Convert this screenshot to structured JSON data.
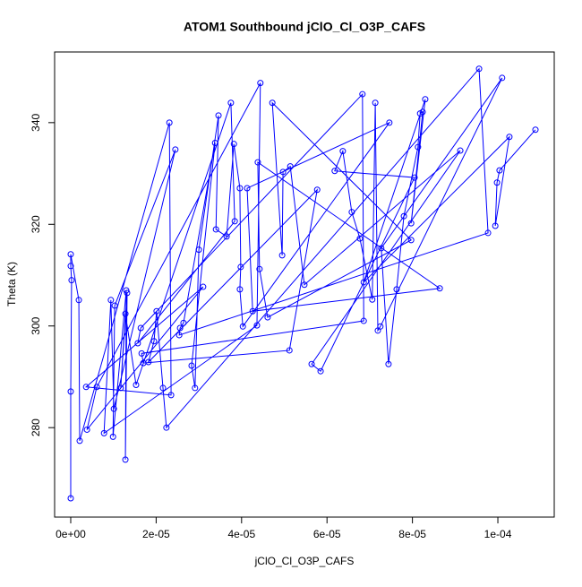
{
  "chart_data": {
    "type": "line",
    "title": "ATOM1 Southbound jClO_Cl_O3P_CAFS",
    "x_label": "jClO_Cl_O3P_CAFS",
    "y_label": "Theta (K)",
    "xlim": [
      -3.77e-06,
      0.0001132
    ],
    "ylim": [
      262.4,
      353.9
    ],
    "xticks": [
      {
        "value": 0,
        "label": "0e+00"
      },
      {
        "value": 2e-05,
        "label": "2e-05"
      },
      {
        "value": 4e-05,
        "label": "4e-05"
      },
      {
        "value": 6e-05,
        "label": "6e-05"
      },
      {
        "value": 8e-05,
        "label": "8e-05"
      },
      {
        "value": 0.0001,
        "label": "1e-04"
      }
    ],
    "yticks": [
      280,
      300,
      320,
      340
    ],
    "grid": false,
    "markers": true,
    "series": [
      {
        "color": "#0000ff",
        "x": [
          0.0,
          0.0,
          2e-07,
          0.0,
          0.0,
          1.9e-06,
          2.1e-06,
          2.31e-05,
          2.35e-05,
          3.6e-06,
          3.1e-05,
          3.8e-06,
          6.1e-06,
          4.44e-05,
          4.36e-05,
          7.8e-06,
          9.4e-06,
          1.01e-05,
          2.45e-05,
          1.03e-05,
          9.9e-06,
          1.3e-05,
          1.28e-05,
          1.32e-05,
          1.17e-05,
          1.28e-05,
          1.53e-05,
          3.75e-05,
          3.84e-05,
          1.57e-05,
          1.64e-05,
          6.83e-05,
          6.86e-05,
          1.66e-05,
          1.7e-05,
          5.12e-05,
          5.77e-05,
          1.82e-05,
          1.95e-05,
          2.01e-05,
          2.16e-05,
          2.24e-05,
          9.56e-05,
          9.77e-05,
          2.54e-05,
          2.56e-05,
          2.64e-05,
          3.38e-05,
          2.83e-05,
          2.91e-05,
          3e-05,
          3.46e-05,
          3.4e-05,
          3.65e-05,
          3.82e-05,
          3.96e-05,
          3.98e-05,
          3.96e-05,
          4.03e-05,
          7.46e-05,
          4.13e-05,
          4.26e-05,
          8.64e-05,
          4.38e-05,
          4.42e-05,
          4.61e-05,
          7.97e-05,
          4.72e-05,
          4.95e-05,
          4.97e-05,
          5.14e-05,
          5.47e-05,
          9.12e-05,
          5.64e-05,
          5.85e-05,
          8.05e-05,
          6.18e-05,
          6.37e-05,
          6.58e-05,
          6.77e-05,
          7.06e-05,
          7.13e-05,
          7.19e-05,
          7.25e-05,
          0.000101,
          7.27e-05,
          7.44e-05,
          7.63e-05,
          7.8e-05,
          8.13e-05,
          8.18e-05,
          8.24e-05,
          7.97e-05,
          8.3e-05,
          6.86e-05,
          0.0001027,
          9.94e-05,
          9.98e-05,
          0.0001004,
          0.0001088
        ],
        "values": [
          266.1,
          287.1,
          309.0,
          311.8,
          314.1,
          305.1,
          277.4,
          340.0,
          286.4,
          288.0,
          307.7,
          279.6,
          288.0,
          347.8,
          300.1,
          278.9,
          305.1,
          283.7,
          334.7,
          304.0,
          278.2,
          307.0,
          273.7,
          306.5,
          287.8,
          302.4,
          288.4,
          343.9,
          320.6,
          296.6,
          299.6,
          345.6,
          301.0,
          294.6,
          292.7,
          295.2,
          326.8,
          292.9,
          297.0,
          302.9,
          287.8,
          280.0,
          350.6,
          318.3,
          298.2,
          299.6,
          300.6,
          336.0,
          292.2,
          287.8,
          315.0,
          341.4,
          319.0,
          317.6,
          335.8,
          327.1,
          311.6,
          307.2,
          299.9,
          340.0,
          327.1,
          302.9,
          307.4,
          332.2,
          311.2,
          301.7,
          316.9,
          343.9,
          313.9,
          330.3,
          331.4,
          308.1,
          334.5,
          292.5,
          291.1,
          329.2,
          330.5,
          334.4,
          322.4,
          317.2,
          305.2,
          343.9,
          299.1,
          299.9,
          348.8,
          315.3,
          292.5,
          307.2,
          321.6,
          335.2,
          341.8,
          342.1,
          320.2,
          344.6,
          308.6,
          337.2,
          319.7,
          328.2,
          330.6,
          338.6
        ]
      }
    ]
  }
}
